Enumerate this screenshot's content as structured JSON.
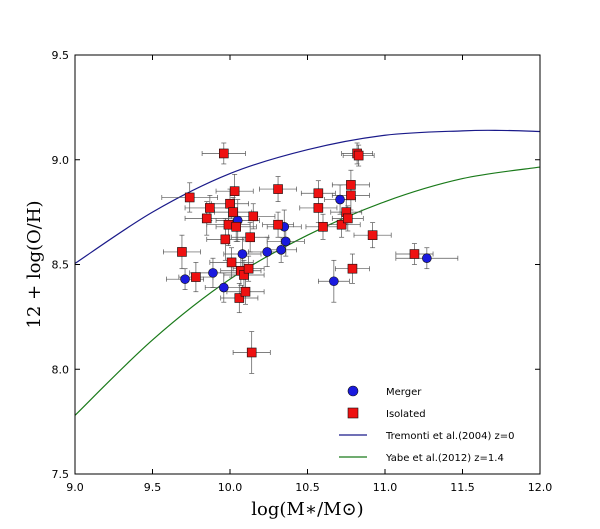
{
  "chart_data": {
    "type": "scatter",
    "xlabel": "log(M∗/M⊙)",
    "ylabel": "12 + log(O/H)",
    "xlim": [
      9.0,
      12.0
    ],
    "ylim": [
      7.5,
      9.5
    ],
    "xticks": [
      "9.0",
      "9.5",
      "10.0",
      "10.5",
      "11.0",
      "11.5",
      "12.0"
    ],
    "yticks": [
      "7.5",
      "8.0",
      "8.5",
      "9.0",
      "9.5"
    ],
    "grid": false,
    "legend_position": "bottom-right",
    "series": [
      {
        "name": "Merger",
        "marker": "circle",
        "color": "#1a1adf",
        "points": [
          {
            "x": 9.71,
            "y": 8.43,
            "xerr": 0.12,
            "yerr": 0.05
          },
          {
            "x": 9.89,
            "y": 8.46,
            "xerr": 0.15,
            "yerr": 0.07
          },
          {
            "x": 9.96,
            "y": 8.39,
            "xerr": 0.12,
            "yerr": 0.07
          },
          {
            "x": 10.05,
            "y": 8.71,
            "xerr": 0.14,
            "yerr": 0.1
          },
          {
            "x": 10.08,
            "y": 8.55,
            "xerr": 0.12,
            "yerr": 0.08
          },
          {
            "x": 10.24,
            "y": 8.56,
            "xerr": 0.12,
            "yerr": 0.07
          },
          {
            "x": 10.33,
            "y": 8.57,
            "xerr": 0.1,
            "yerr": 0.06
          },
          {
            "x": 10.35,
            "y": 8.68,
            "xerr": 0.11,
            "yerr": 0.08
          },
          {
            "x": 10.36,
            "y": 8.61,
            "xerr": 0.12,
            "yerr": 0.07
          },
          {
            "x": 10.67,
            "y": 8.42,
            "xerr": 0.1,
            "yerr": 0.1
          },
          {
            "x": 10.71,
            "y": 8.81,
            "xerr": 0.1,
            "yerr": 0.07
          },
          {
            "x": 11.27,
            "y": 8.53,
            "xerr": 0.2,
            "yerr": 0.05
          }
        ]
      },
      {
        "name": "Isolated",
        "marker": "square",
        "color": "#ee1111",
        "points": [
          {
            "x": 9.69,
            "y": 8.56,
            "xerr": 0.12,
            "yerr": 0.08
          },
          {
            "x": 9.74,
            "y": 8.82,
            "xerr": 0.18,
            "yerr": 0.07
          },
          {
            "x": 9.78,
            "y": 8.44,
            "xerr": 0.11,
            "yerr": 0.07
          },
          {
            "x": 9.85,
            "y": 8.72,
            "xerr": 0.14,
            "yerr": 0.08
          },
          {
            "x": 9.87,
            "y": 8.77,
            "xerr": 0.16,
            "yerr": 0.06
          },
          {
            "x": 9.96,
            "y": 9.03,
            "xerr": 0.14,
            "yerr": 0.05
          },
          {
            "x": 9.97,
            "y": 8.62,
            "xerr": 0.12,
            "yerr": 0.1
          },
          {
            "x": 9.99,
            "y": 8.69,
            "xerr": 0.14,
            "yerr": 0.1
          },
          {
            "x": 10.0,
            "y": 8.79,
            "xerr": 0.12,
            "yerr": 0.07
          },
          {
            "x": 10.01,
            "y": 8.51,
            "xerr": 0.14,
            "yerr": 0.07
          },
          {
            "x": 10.02,
            "y": 8.75,
            "xerr": 0.12,
            "yerr": 0.07
          },
          {
            "x": 10.03,
            "y": 8.85,
            "xerr": 0.12,
            "yerr": 0.08
          },
          {
            "x": 10.04,
            "y": 8.68,
            "xerr": 0.13,
            "yerr": 0.07
          },
          {
            "x": 10.06,
            "y": 8.34,
            "xerr": 0.12,
            "yerr": 0.07
          },
          {
            "x": 10.07,
            "y": 8.47,
            "xerr": 0.13,
            "yerr": 0.07
          },
          {
            "x": 10.09,
            "y": 8.45,
            "xerr": 0.13,
            "yerr": 0.07
          },
          {
            "x": 10.1,
            "y": 8.37,
            "xerr": 0.12,
            "yerr": 0.06
          },
          {
            "x": 10.12,
            "y": 8.48,
            "xerr": 0.1,
            "yerr": 0.06
          },
          {
            "x": 10.13,
            "y": 8.63,
            "xerr": 0.12,
            "yerr": 0.07
          },
          {
            "x": 10.15,
            "y": 8.73,
            "xerr": 0.14,
            "yerr": 0.06
          },
          {
            "x": 10.14,
            "y": 8.08,
            "xerr": 0.12,
            "yerr": 0.1
          },
          {
            "x": 10.31,
            "y": 8.86,
            "xerr": 0.12,
            "yerr": 0.06
          },
          {
            "x": 10.31,
            "y": 8.69,
            "xerr": 0.1,
            "yerr": 0.06
          },
          {
            "x": 10.57,
            "y": 8.84,
            "xerr": 0.11,
            "yerr": 0.06
          },
          {
            "x": 10.57,
            "y": 8.77,
            "xerr": 0.12,
            "yerr": 0.07
          },
          {
            "x": 10.6,
            "y": 8.68,
            "xerr": 0.11,
            "yerr": 0.06
          },
          {
            "x": 10.72,
            "y": 8.69,
            "xerr": 0.12,
            "yerr": 0.06
          },
          {
            "x": 10.75,
            "y": 8.75,
            "xerr": 0.1,
            "yerr": 0.06
          },
          {
            "x": 10.76,
            "y": 8.72,
            "xerr": 0.1,
            "yerr": 0.06
          },
          {
            "x": 10.78,
            "y": 8.88,
            "xerr": 0.12,
            "yerr": 0.07
          },
          {
            "x": 10.78,
            "y": 8.83,
            "xerr": 0.12,
            "yerr": 0.07
          },
          {
            "x": 10.79,
            "y": 8.48,
            "xerr": 0.11,
            "yerr": 0.07
          },
          {
            "x": 10.82,
            "y": 9.03,
            "xerr": 0.1,
            "yerr": 0.05
          },
          {
            "x": 10.83,
            "y": 9.02,
            "xerr": 0.1,
            "yerr": 0.05
          },
          {
            "x": 10.92,
            "y": 8.64,
            "xerr": 0.12,
            "yerr": 0.06
          },
          {
            "x": 11.19,
            "y": 8.55,
            "xerr": 0.12,
            "yerr": 0.05
          }
        ]
      },
      {
        "name": "Tremonti et al.(2004) z=0",
        "marker": "line",
        "color": "#1a1a8a",
        "curve": [
          {
            "x": 9.0,
            "y": 8.505
          },
          {
            "x": 9.5,
            "y": 8.75
          },
          {
            "x": 10.0,
            "y": 8.934
          },
          {
            "x": 10.5,
            "y": 9.048
          },
          {
            "x": 11.0,
            "y": 9.117
          },
          {
            "x": 11.5,
            "y": 9.138
          },
          {
            "x": 11.75,
            "y": 9.14
          },
          {
            "x": 12.0,
            "y": 9.135
          }
        ]
      },
      {
        "name": "Yabe et al.(2012) z=1.4",
        "marker": "line",
        "color": "#1a7a1a",
        "curve": [
          {
            "x": 9.0,
            "y": 7.78
          },
          {
            "x": 9.5,
            "y": 8.14
          },
          {
            "x": 10.0,
            "y": 8.43
          },
          {
            "x": 10.5,
            "y": 8.64
          },
          {
            "x": 11.0,
            "y": 8.8
          },
          {
            "x": 11.5,
            "y": 8.91
          },
          {
            "x": 12.0,
            "y": 8.965
          }
        ]
      }
    ],
    "legend": [
      {
        "label": "Merger",
        "symbol": "circle",
        "color": "#1a1adf"
      },
      {
        "label": "Isolated",
        "symbol": "square",
        "color": "#ee1111"
      },
      {
        "label": "Tremonti et al.(2004) z=0",
        "symbol": "line",
        "color": "#1a1a8a"
      },
      {
        "label": "Yabe et al.(2012) z=1.4",
        "symbol": "line",
        "color": "#1a7a1a"
      }
    ]
  }
}
